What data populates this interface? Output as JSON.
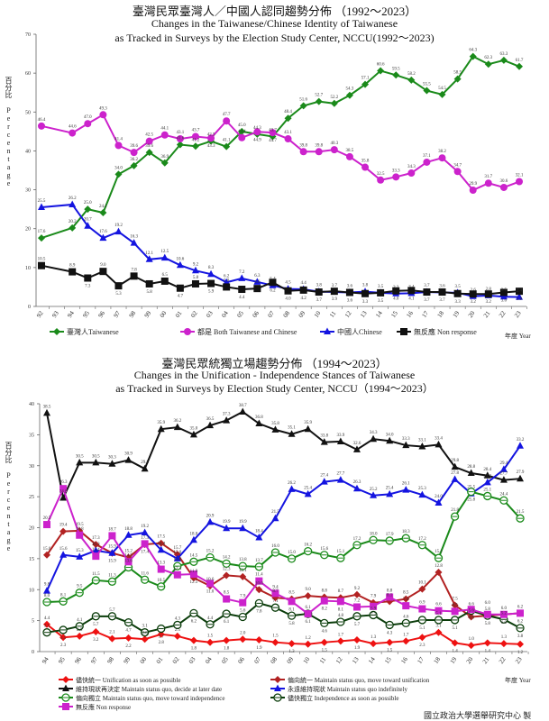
{
  "chart_data": [
    {
      "type": "line",
      "title_zh": "臺灣民眾臺灣人／中國人認同趨勢分佈 （1992～2023）",
      "title": "Changes in the Taiwanese/Chinese Identity of Taiwanese",
      "subtitle": "as Tracked in Surveys by the Election Study Center, NCCU(1992～2023)",
      "ylabel": "百分比 Percentage",
      "xlabel": "年度 Year",
      "ylim": [
        0,
        70
      ],
      "yticks": [
        0,
        10,
        20,
        30,
        40,
        50,
        60,
        70
      ],
      "grid": false,
      "legend": "bottom",
      "categories": [
        "92",
        "93",
        "94",
        "95",
        "96",
        "97",
        "98",
        "99",
        "00",
        "01",
        "02",
        "03",
        "04",
        "05",
        "06",
        "07",
        "08",
        "09",
        "10",
        "11",
        "12",
        "13",
        "14",
        "15",
        "16",
        "17",
        "18",
        "19",
        "20",
        "21",
        "22",
        "23"
      ],
      "series": [
        {
          "name": "臺灣人Taiwanese",
          "color": "#1a8a1a",
          "marker": "diamond",
          "values": [
            17.6,
            null,
            20.2,
            25.0,
            24.1,
            34.0,
            36.2,
            39.6,
            36.9,
            41.6,
            41.2,
            42.5,
            41.1,
            45.0,
            44.3,
            43.7,
            48.4,
            51.6,
            52.7,
            52.2,
            54.3,
            57.1,
            60.6,
            59.5,
            58.2,
            55.5,
            54.5,
            58.5,
            64.3,
            62.3,
            63.3,
            61.7
          ]
        },
        {
          "name": "都是 Both Taiwanese and Chinese",
          "color": "#cc22cc",
          "marker": "circle",
          "values": [
            46.4,
            null,
            44.6,
            47.0,
            49.3,
            41.4,
            39.6,
            42.5,
            44.1,
            43.1,
            43.7,
            43.3,
            47.7,
            43.4,
            44.9,
            44.7,
            43.1,
            39.8,
            39.8,
            40.3,
            38.5,
            35.8,
            32.5,
            33.3,
            34.3,
            37.1,
            38.2,
            34.7,
            29.9,
            31.7,
            30.6,
            32.1
          ]
        },
        {
          "name": "中國人Chinese",
          "color": "#1414e0",
          "marker": "triangle",
          "values": [
            25.5,
            null,
            26.2,
            20.7,
            17.6,
            19.2,
            16.3,
            12.1,
            12.5,
            10.6,
            9.2,
            8.3,
            6.2,
            7.2,
            6.3,
            5.4,
            4.5,
            4.4,
            3.8,
            3.7,
            3.6,
            3.8,
            3.5,
            3.3,
            3.4,
            3.7,
            3.6,
            3.5,
            2.6,
            2.8,
            2.5,
            2.4
          ]
        },
        {
          "name": "無反應 Non response",
          "color": "#111111",
          "marker": "square",
          "values": [
            10.5,
            null,
            8.9,
            7.3,
            9.0,
            5.3,
            7.8,
            5.8,
            6.5,
            4.7,
            5.8,
            5.9,
            5.0,
            4.4,
            4.6,
            6.2,
            4.0,
            4.2,
            3.7,
            3.9,
            3.6,
            3.3,
            3.5,
            4.0,
            4.1,
            3.7,
            3.7,
            3.3,
            3.2,
            3.2,
            3.6,
            3.9
          ]
        }
      ]
    },
    {
      "type": "line",
      "title_zh": "臺灣民眾統獨立場趨勢分佈 （1994～2023）",
      "title": "Changes in the Unification - Independence Stances of Taiwanese",
      "subtitle": "as Tracked in Surveys by Election Study Center, NCCU（1994～2023）",
      "ylabel": "百分比 Percentage",
      "xlabel": "年度 Year",
      "ylim": [
        0,
        40
      ],
      "yticks": [
        0,
        5,
        10,
        15,
        20,
        25,
        30,
        35,
        40
      ],
      "grid": false,
      "legend": "bottom",
      "categories": [
        "94",
        "95",
        "96",
        "97",
        "98",
        "99",
        "00",
        "01",
        "02",
        "03",
        "04",
        "05",
        "06",
        "07",
        "08",
        "09",
        "10",
        "11",
        "12",
        "13",
        "14",
        "15",
        "16",
        "17",
        "18",
        "19",
        "20",
        "21",
        "22",
        "23"
      ],
      "series": [
        {
          "name": "儘快統一 Unification as soon as possible",
          "color": "#ee1111",
          "marker": "diamond",
          "values": [
            4.4,
            2.3,
            2.5,
            3.2,
            2.1,
            2.2,
            2.0,
            2.8,
            2.5,
            1.8,
            1.5,
            1.8,
            2.0,
            1.9,
            1.5,
            1.3,
            1.2,
            1.5,
            1.7,
            1.9,
            1.3,
            1.5,
            1.7,
            2.3,
            3.1,
            1.4,
            1.0,
            1.4,
            1.3,
            1.2
          ]
        },
        {
          "name": "偏向統一 Maintain status quo, move toward unification",
          "color": "#b22222",
          "marker": "diamond",
          "values": [
            15.6,
            19.4,
            19.5,
            17.3,
            15.9,
            15.2,
            17.3,
            17.5,
            15.7,
            11.9,
            10.6,
            12.3,
            12.1,
            10.0,
            8.7,
            8.5,
            9.0,
            8.8,
            8.7,
            9.2,
            7.9,
            8.1,
            8.5,
            10.1,
            12.8,
            7.5,
            5.6,
            5.8,
            6.0,
            6.2
          ]
        },
        {
          "name": "維持現狀再決定 Maintain status quo, decide at later date",
          "color": "#111111",
          "marker": "triangle",
          "values": [
            38.5,
            24.8,
            30.5,
            30.5,
            30.3,
            30.9,
            29.5,
            35.9,
            36.2,
            35.0,
            36.5,
            37.3,
            38.7,
            36.8,
            35.8,
            35.1,
            35.9,
            33.8,
            33.9,
            32.6,
            34.3,
            34.0,
            33.3,
            33.1,
            33.4,
            29.8,
            28.8,
            28.4,
            27.7,
            27.9
          ]
        },
        {
          "name": "永遠維持現狀 Maintain status quo indefinitely",
          "color": "#1414e0",
          "marker": "triangle",
          "values": [
            9.8,
            15.6,
            15.3,
            16.3,
            15.9,
            18.8,
            19.2,
            16.4,
            15.0,
            18.0,
            20.9,
            19.9,
            19.9,
            18.4,
            21.5,
            26.2,
            25.4,
            27.4,
            27.7,
            26.3,
            25.2,
            25.4,
            26.1,
            25.3,
            24.0,
            27.8,
            25.5,
            27.3,
            29.4,
            33.2
          ]
        },
        {
          "name": "偏向獨立 Maintain status quo, move toward independence",
          "color": "#1a8a1a",
          "marker": "ring",
          "values": [
            8.0,
            8.1,
            9.5,
            11.5,
            11.3,
            13.6,
            11.6,
            10.5,
            13.8,
            14.5,
            15.2,
            14.2,
            13.8,
            13.7,
            16.0,
            15.0,
            16.2,
            15.6,
            15.1,
            17.2,
            18.0,
            17.9,
            18.3,
            17.2,
            15.1,
            21.8,
            25.8,
            25.1,
            24.4,
            21.5
          ]
        },
        {
          "name": "儘快獨立 Independence as soon as possible",
          "color": "#0b3d0b",
          "marker": "ring",
          "values": [
            3.1,
            3.5,
            4.1,
            5.7,
            5.7,
            4.7,
            3.1,
            3.7,
            4.3,
            6.2,
            4.4,
            6.1,
            5.6,
            7.8,
            7.1,
            5.8,
            6.1,
            4.6,
            4.8,
            5.7,
            5.9,
            4.3,
            4.6,
            5.1,
            5.1,
            5.1,
            6.6,
            5.8,
            5.2,
            3.8
          ]
        },
        {
          "name": "無反應 Non response",
          "color": "#cc22cc",
          "marker": "square",
          "values": [
            20.5,
            26.3,
            18.8,
            15.4,
            18.7,
            14.5,
            17.4,
            13.3,
            12.4,
            12.5,
            11.0,
            8.5,
            7.9,
            11.4,
            9.4,
            8.1,
            6.1,
            8.2,
            8.1,
            7.2,
            7.3,
            8.8,
            7.4,
            6.9,
            6.6,
            6.5,
            6.8,
            6.0,
            6.0,
            6.2
          ]
        }
      ]
    }
  ],
  "footer": "國立政治大學選舉研究中心 製"
}
